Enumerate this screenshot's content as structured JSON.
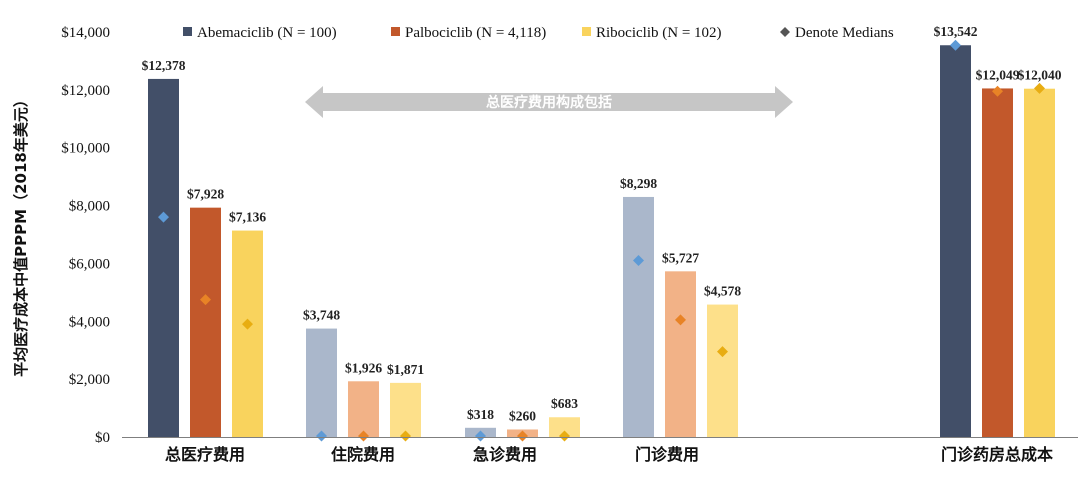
{
  "chart_data": {
    "type": "bar",
    "title": "",
    "xlabel": "",
    "ylabel": "平均医疗成本中值PPPM（2018年美元）",
    "ylim": [
      0,
      14000
    ],
    "yticks": [
      0,
      2000,
      4000,
      6000,
      8000,
      10000,
      12000,
      14000
    ],
    "ytick_labels": [
      "$0",
      "$2,000",
      "$4,000",
      "$6,000",
      "$8,000",
      "$10,000",
      "$12,000",
      "$14,000"
    ],
    "grid": false,
    "legend_position": "top",
    "categories": [
      "总医疗费用",
      "住院费用",
      "急诊费用",
      "门诊费用",
      "门诊药房总成本"
    ],
    "series": [
      {
        "name": "Abemaciclib (N = 100)",
        "values": [
          12378,
          3748,
          318,
          8298,
          13542
        ],
        "value_labels": [
          "$12,378",
          "$3,748",
          "$318",
          "$8,298",
          "$13,542"
        ],
        "medians": [
          7600,
          0,
          0,
          6100,
          13542
        ]
      },
      {
        "name": "Palbociclib (N = 4,118)",
        "values": [
          7928,
          1926,
          260,
          5727,
          12049
        ],
        "value_labels": [
          "$7,928",
          "$1,926",
          "$260",
          "$5,727",
          "$12,049"
        ],
        "medians": [
          4750,
          0,
          30,
          4050,
          11950
        ]
      },
      {
        "name": "Ribociclib (N = 102)",
        "values": [
          7136,
          1871,
          683,
          4578,
          12040
        ],
        "value_labels": [
          "$7,136",
          "$1,871",
          "$683",
          "$4,578",
          "$12,040"
        ],
        "medians": [
          3900,
          0,
          0,
          2950,
          12050
        ]
      }
    ],
    "median_legend": "Denote Medians",
    "annotation": "总医疗费用构成包括",
    "annotation_spans_categories": [
      "住院费用",
      "急诊费用",
      "门诊费用"
    ],
    "colors": {
      "series_strong": [
        "#424f68",
        "#c2582b",
        "#f9d35d"
      ],
      "series_light": [
        "#aab7cb",
        "#f2b287",
        "#fde08a"
      ],
      "medians_strong": [
        "#5d9ad6",
        "#e88326",
        "#e8ad12"
      ],
      "medians_light": [
        "#5d9ad6",
        "#e88326",
        "#e8ad12"
      ],
      "legend_diamond": "#555555",
      "arrow": "#c6c6c6",
      "axis": "#7f7f7f"
    },
    "light_categories": [
      "住院费用",
      "急诊费用",
      "门诊费用"
    ]
  }
}
